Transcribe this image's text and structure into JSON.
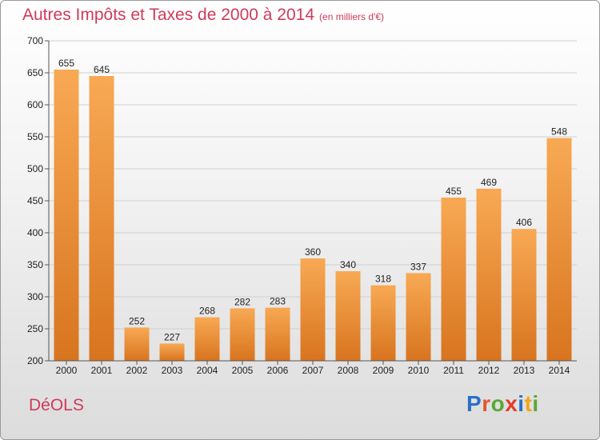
{
  "chart_data": {
    "type": "bar",
    "title": "Autres Impôts et Taxes de 2000 à 2014",
    "subtitle": "(en milliers d'€)",
    "categories": [
      "2000",
      "2001",
      "2002",
      "2003",
      "2004",
      "2005",
      "2006",
      "2007",
      "2008",
      "2009",
      "2010",
      "2011",
      "2012",
      "2013",
      "2014"
    ],
    "values": [
      655,
      645,
      252,
      227,
      268,
      282,
      283,
      360,
      340,
      318,
      337,
      455,
      469,
      406,
      548
    ],
    "ylim": [
      200,
      700
    ],
    "yticks": [
      200,
      250,
      300,
      350,
      400,
      450,
      500,
      550,
      600,
      650,
      700
    ],
    "grid": true,
    "bar_color_top": "#f8a954",
    "bar_color_bottom": "#d8741f"
  },
  "footer": {
    "place": "DéOLS",
    "brand": "Proxiti"
  },
  "colors": {
    "title": "#d03a5a",
    "brand_letters": [
      "#2a6fc9",
      "#e1572a",
      "#5aa832",
      "#e33b2b",
      "#2a6fc9",
      "#f2a51a",
      "#5aa832"
    ]
  }
}
